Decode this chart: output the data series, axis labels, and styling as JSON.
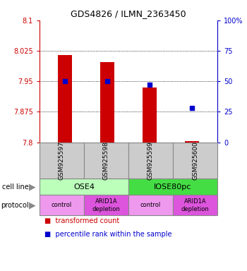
{
  "title": "GDS4826 / ILMN_2363450",
  "samples": [
    "GSM925597",
    "GSM925598",
    "GSM925599",
    "GSM925600"
  ],
  "bar_base": 7.8,
  "red_bar_tops": [
    8.015,
    7.998,
    7.935,
    7.803
  ],
  "blue_square_pct": [
    50,
    50,
    47,
    28
  ],
  "ylim_left": [
    7.8,
    8.1
  ],
  "ylim_right": [
    0,
    100
  ],
  "yticks_left": [
    7.8,
    7.875,
    7.95,
    8.025,
    8.1
  ],
  "yticks_right": [
    0,
    25,
    50,
    75,
    100
  ],
  "ytick_labels_left": [
    "7.8",
    "7.875",
    "7.95",
    "8.025",
    "8.1"
  ],
  "ytick_labels_right": [
    "0",
    "25",
    "50",
    "75",
    "100%"
  ],
  "cell_line_labels": [
    "OSE4",
    "IOSE80pc"
  ],
  "cell_line_spans": [
    [
      0,
      2
    ],
    [
      2,
      4
    ]
  ],
  "cell_line_colors": [
    "#bbffbb",
    "#44dd44"
  ],
  "protocol_labels": [
    "control",
    "ARID1A\ndepletion",
    "control",
    "ARID1A\ndepletion"
  ],
  "protocol_colors": [
    "#ee99ee",
    "#dd55dd",
    "#ee99ee",
    "#dd55dd"
  ],
  "bar_color": "#cc0000",
  "blue_color": "#0000cc",
  "legend_red_label": "transformed count",
  "legend_blue_label": "percentile rank within the sample",
  "cell_line_text": "cell line",
  "protocol_text": "protocol",
  "sample_box_color": "#cccccc",
  "bg_color": "#ffffff",
  "grid_color": "#000000",
  "spine_color": "#888888"
}
